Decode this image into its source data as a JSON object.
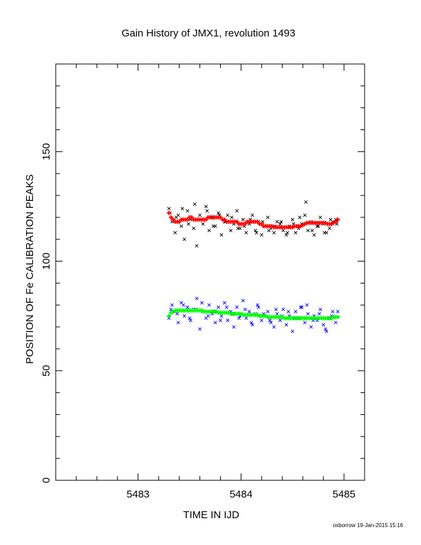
{
  "chart_data": {
    "type": "scatter",
    "title": "Gain History of JMX1, revolution 1493",
    "xlabel": "TIME IN IJD",
    "ylabel": "POSITION OF Fe CALIBRATION PEAKS",
    "xlim": [
      5482.2,
      5485.2
    ],
    "ylim": [
      0,
      190
    ],
    "xticks": [
      5483,
      5484,
      5485
    ],
    "yticks": [
      0,
      50,
      100,
      150
    ],
    "footer": "oxborrow 19-Jan-2015 15:16",
    "grid": false,
    "series": [
      {
        "marker": "x",
        "color": "#000000",
        "x": [
          5483.3,
          5483.33,
          5483.36,
          5483.39,
          5483.42,
          5483.45,
          5483.48,
          5483.51,
          5483.54,
          5483.57,
          5483.6,
          5483.63,
          5483.66,
          5483.69,
          5483.72,
          5483.75,
          5483.78,
          5483.81,
          5483.84,
          5483.87,
          5483.9,
          5483.93,
          5483.96,
          5483.99,
          5484.02,
          5484.05,
          5484.08,
          5484.11,
          5484.14,
          5484.17,
          5484.2,
          5484.23,
          5484.26,
          5484.29,
          5484.32,
          5484.35,
          5484.38,
          5484.41,
          5484.44,
          5484.47,
          5484.5,
          5484.53,
          5484.56,
          5484.59,
          5484.62,
          5484.65,
          5484.68,
          5484.71,
          5484.74,
          5484.77,
          5484.8,
          5484.83,
          5484.86,
          5484.89,
          5484.92,
          5483.31,
          5483.37,
          5483.43,
          5483.49,
          5483.55,
          5483.61,
          5483.67,
          5483.73,
          5483.79,
          5483.85,
          5483.91,
          5483.97,
          5484.03,
          5484.09,
          5484.15,
          5484.21,
          5484.27,
          5484.33,
          5484.39,
          5484.45,
          5484.51,
          5484.57,
          5484.63,
          5484.69,
          5484.75,
          5484.81,
          5484.87,
          5484.93
        ],
        "y": [
          124,
          118,
          113,
          121,
          116,
          110,
          123,
          119,
          115,
          107,
          121,
          117,
          125,
          114,
          120,
          116,
          122,
          112,
          118,
          121,
          114,
          117,
          123,
          115,
          119,
          113,
          117,
          121,
          114,
          118,
          112,
          116,
          120,
          115,
          113,
          118,
          117,
          114,
          112,
          116,
          119,
          113,
          115,
          117,
          121,
          114,
          118,
          112,
          116,
          120,
          117,
          113,
          115,
          118,
          119,
          122,
          120,
          124,
          117,
          126,
          119,
          123,
          116,
          121,
          118,
          120,
          115,
          116,
          119,
          113,
          118,
          114,
          116,
          118,
          113,
          117,
          120,
          127,
          114,
          116,
          113,
          119,
          117
        ]
      },
      {
        "marker": "x",
        "color": "#0000ff",
        "x": [
          5483.3,
          5483.33,
          5483.36,
          5483.39,
          5483.42,
          5483.45,
          5483.48,
          5483.51,
          5483.54,
          5483.57,
          5483.6,
          5483.63,
          5483.66,
          5483.69,
          5483.72,
          5483.75,
          5483.78,
          5483.81,
          5483.84,
          5483.87,
          5483.9,
          5483.93,
          5483.96,
          5483.99,
          5484.02,
          5484.05,
          5484.08,
          5484.11,
          5484.14,
          5484.17,
          5484.2,
          5484.23,
          5484.26,
          5484.29,
          5484.32,
          5484.35,
          5484.38,
          5484.41,
          5484.44,
          5484.47,
          5484.5,
          5484.53,
          5484.56,
          5484.59,
          5484.62,
          5484.65,
          5484.68,
          5484.71,
          5484.74,
          5484.77,
          5484.8,
          5484.83,
          5484.86,
          5484.89,
          5484.92,
          5483.32,
          5483.38,
          5483.44,
          5483.5,
          5483.56,
          5483.62,
          5483.68,
          5483.74,
          5483.8,
          5483.86,
          5483.92,
          5483.98,
          5484.04,
          5484.1,
          5484.16,
          5484.22,
          5484.28,
          5484.34,
          5484.4,
          5484.46,
          5484.52,
          5484.58,
          5484.64,
          5484.7,
          5484.76,
          5484.82,
          5484.88,
          5484.94
        ],
        "y": [
          74,
          80,
          77,
          72,
          81,
          75,
          79,
          73,
          78,
          83,
          69,
          77,
          74,
          80,
          76,
          72,
          79,
          75,
          81,
          73,
          77,
          70,
          79,
          75,
          82,
          74,
          77,
          71,
          76,
          79,
          73,
          75,
          77,
          72,
          70,
          76,
          73,
          78,
          71,
          75,
          68,
          77,
          74,
          79,
          72,
          76,
          70,
          75,
          73,
          78,
          71,
          68,
          74,
          77,
          72,
          78,
          76,
          80,
          74,
          78,
          81,
          75,
          77,
          73,
          79,
          76,
          74,
          78,
          72,
          80,
          76,
          73,
          78,
          75,
          77,
          74,
          79,
          80,
          73,
          76,
          69,
          75,
          77
        ]
      },
      {
        "marker": "+",
        "color": "#ff0000",
        "x": [
          5483.3,
          5483.32,
          5483.34,
          5483.36,
          5483.38,
          5483.4,
          5483.42,
          5483.44,
          5483.46,
          5483.48,
          5483.5,
          5483.52,
          5483.54,
          5483.56,
          5483.58,
          5483.6,
          5483.62,
          5483.64,
          5483.66,
          5483.68,
          5483.7,
          5483.72,
          5483.74,
          5483.76,
          5483.78,
          5483.8,
          5483.82,
          5483.84,
          5483.86,
          5483.88,
          5483.9,
          5483.92,
          5483.94,
          5483.96,
          5483.98,
          5484.0,
          5484.02,
          5484.04,
          5484.06,
          5484.08,
          5484.1,
          5484.12,
          5484.14,
          5484.16,
          5484.18,
          5484.2,
          5484.22,
          5484.24,
          5484.26,
          5484.28,
          5484.3,
          5484.32,
          5484.34,
          5484.36,
          5484.38,
          5484.4,
          5484.42,
          5484.44,
          5484.46,
          5484.48,
          5484.5,
          5484.52,
          5484.54,
          5484.56,
          5484.58,
          5484.6,
          5484.62,
          5484.64,
          5484.66,
          5484.68,
          5484.7,
          5484.72,
          5484.74,
          5484.76,
          5484.78,
          5484.8,
          5484.82,
          5484.84,
          5484.86,
          5484.88,
          5484.9,
          5484.92,
          5484.94
        ],
        "y": [
          122,
          120,
          119,
          118,
          118,
          118,
          119,
          119,
          119,
          119,
          120,
          120,
          119,
          119,
          119,
          119,
          119,
          119,
          119,
          120,
          120,
          120,
          120,
          120,
          120,
          120,
          119,
          119,
          118,
          118,
          118,
          118,
          118,
          118,
          117,
          117,
          117,
          117,
          118,
          118,
          118,
          118,
          118,
          118,
          117,
          117,
          116,
          116,
          116,
          116,
          116,
          115.5,
          115.5,
          115.5,
          115.5,
          115.5,
          115.5,
          115.5,
          115.5,
          115.5,
          115.5,
          116,
          116,
          116,
          116,
          116.5,
          117,
          117.5,
          117.5,
          117.5,
          117.5,
          117.5,
          117.5,
          117.5,
          117.5,
          117.5,
          117.5,
          117,
          117,
          117,
          117.5,
          118,
          119
        ]
      },
      {
        "marker": "+",
        "color": "#00ff00",
        "x": [
          5483.3,
          5483.32,
          5483.34,
          5483.36,
          5483.38,
          5483.4,
          5483.42,
          5483.44,
          5483.46,
          5483.48,
          5483.5,
          5483.52,
          5483.54,
          5483.56,
          5483.58,
          5483.6,
          5483.62,
          5483.64,
          5483.66,
          5483.68,
          5483.7,
          5483.72,
          5483.74,
          5483.76,
          5483.78,
          5483.8,
          5483.82,
          5483.84,
          5483.86,
          5483.88,
          5483.9,
          5483.92,
          5483.94,
          5483.96,
          5483.98,
          5484.0,
          5484.02,
          5484.04,
          5484.06,
          5484.08,
          5484.1,
          5484.12,
          5484.14,
          5484.16,
          5484.18,
          5484.2,
          5484.22,
          5484.24,
          5484.26,
          5484.28,
          5484.3,
          5484.32,
          5484.34,
          5484.36,
          5484.38,
          5484.4,
          5484.42,
          5484.44,
          5484.46,
          5484.48,
          5484.5,
          5484.52,
          5484.54,
          5484.56,
          5484.58,
          5484.6,
          5484.62,
          5484.64,
          5484.66,
          5484.68,
          5484.7,
          5484.72,
          5484.74,
          5484.76,
          5484.78,
          5484.8,
          5484.82,
          5484.84,
          5484.86,
          5484.88,
          5484.9,
          5484.92,
          5484.94
        ],
        "y": [
          75,
          76.5,
          77,
          77.5,
          77.5,
          77.5,
          77.5,
          77.5,
          77.5,
          77.5,
          77.5,
          77.5,
          77.5,
          77.5,
          77.5,
          77.5,
          77.5,
          77,
          77,
          77,
          77,
          77,
          77,
          77,
          76.5,
          76.5,
          76.5,
          76.5,
          76.5,
          76.5,
          76,
          76,
          76,
          76,
          76,
          76,
          75.5,
          75.5,
          75.5,
          75.5,
          75.5,
          75.5,
          75.5,
          75.5,
          75,
          75,
          75,
          75,
          74.5,
          74.5,
          74.5,
          74.5,
          74.5,
          74.5,
          74.5,
          74.5,
          74,
          74,
          74,
          74,
          74,
          74,
          74,
          74,
          74,
          74,
          74,
          74,
          74,
          74,
          74,
          74,
          74,
          74,
          74,
          74,
          74,
          74,
          74,
          74,
          74.5,
          74.5,
          74.5
        ]
      }
    ]
  }
}
